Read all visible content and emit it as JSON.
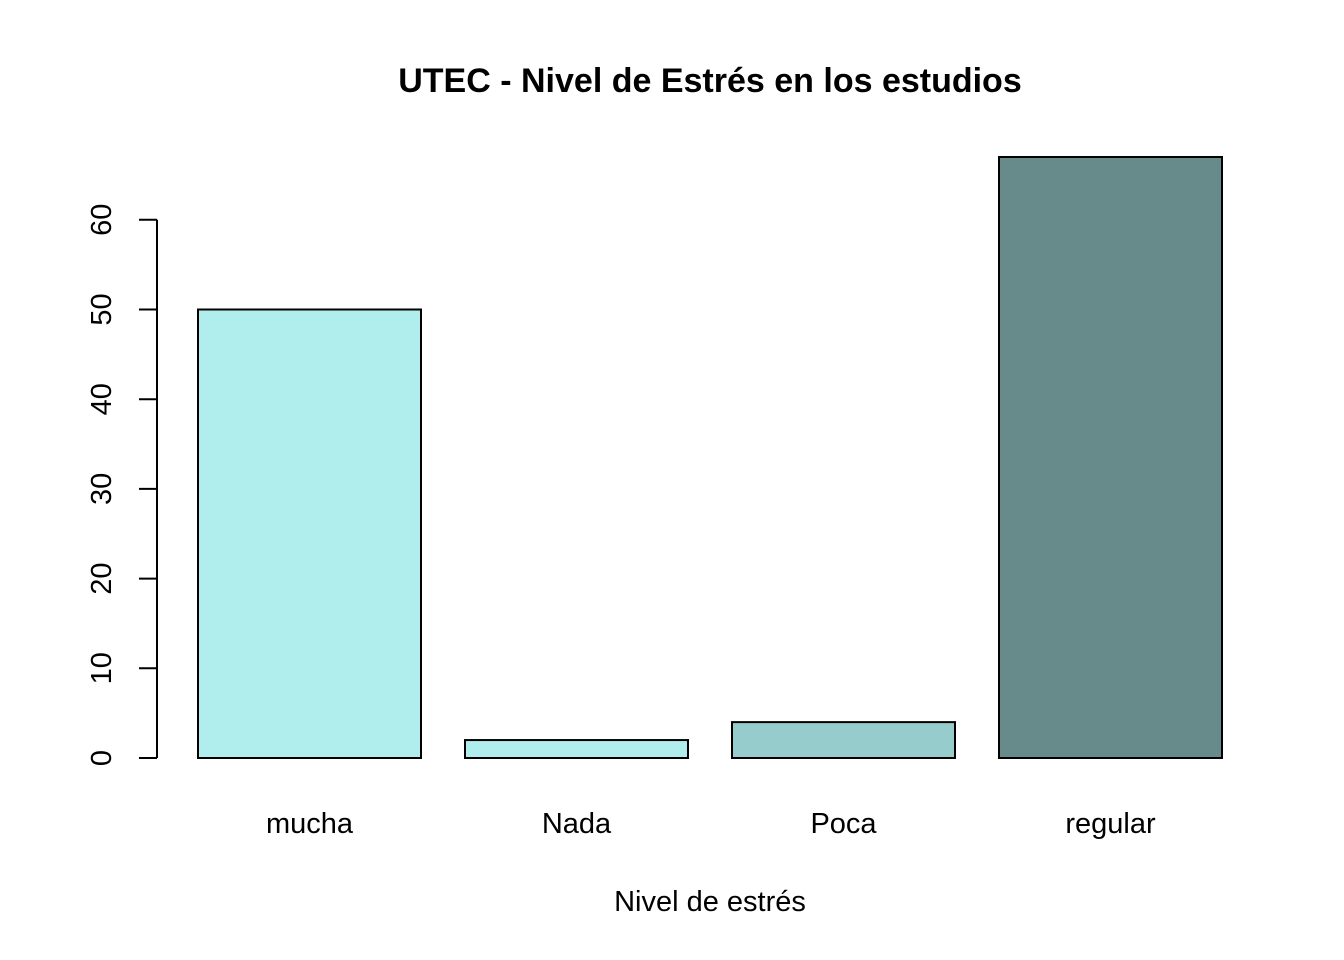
{
  "chart_data": {
    "type": "bar",
    "title": "UTEC - Nivel de Estrés en los estudios",
    "xlabel": "Nivel de estrés",
    "ylabel": "",
    "categories": [
      "mucha",
      "Nada",
      "Poca",
      "regular"
    ],
    "values": [
      50,
      2,
      4,
      67
    ],
    "colors": [
      "#b0eded",
      "#b0eded",
      "#96cccc",
      "#678b8b"
    ],
    "ylim": [
      0,
      67
    ],
    "yticks": [
      0,
      10,
      20,
      30,
      40,
      50,
      60
    ],
    "grid": false,
    "legend": "none"
  }
}
